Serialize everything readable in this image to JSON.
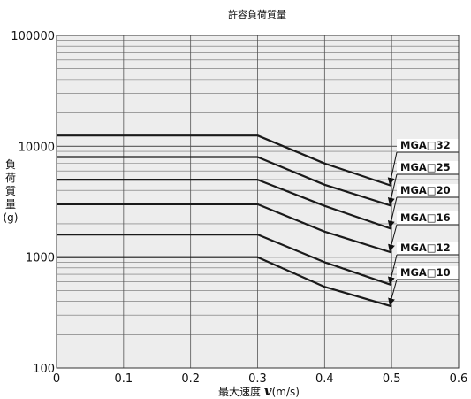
{
  "chart_data": {
    "type": "line",
    "title": "許容負荷質量",
    "xlabel_main": "最大速度 ",
    "xlabel_var": "v",
    "xlabel_unit": "(m/s)",
    "ylabel_chars": [
      "負",
      "荷",
      "質",
      "量",
      "(g)"
    ],
    "y_scale": "log",
    "xlim": [
      0,
      0.6
    ],
    "ylim": [
      100,
      100000
    ],
    "x_ticks": [
      0,
      0.1,
      0.2,
      0.3,
      0.4,
      0.5,
      0.6
    ],
    "x_tick_labels": [
      "0",
      "0.1",
      "0.2",
      "0.3",
      "0.4",
      "0.5",
      "0.6"
    ],
    "y_ticks": [
      100,
      1000,
      10000,
      100000
    ],
    "y_tick_labels": [
      "100",
      "1000",
      "10000",
      "100000"
    ],
    "grid": true,
    "background": "#ededed",
    "line_color": "#1a1a1a",
    "series": [
      {
        "name": "MGA□32",
        "x": [
          0,
          0.3,
          0.4,
          0.5
        ],
        "y": [
          12500,
          12500,
          7000,
          4400
        ]
      },
      {
        "name": "MGA□25",
        "x": [
          0,
          0.3,
          0.4,
          0.5
        ],
        "y": [
          8000,
          8000,
          4500,
          2900
        ]
      },
      {
        "name": "MGA□20",
        "x": [
          0,
          0.3,
          0.4,
          0.5
        ],
        "y": [
          5000,
          5000,
          2900,
          1800
        ]
      },
      {
        "name": "MGA□16",
        "x": [
          0,
          0.3,
          0.4,
          0.5
        ],
        "y": [
          3000,
          3000,
          1700,
          1100
        ]
      },
      {
        "name": "MGA□12",
        "x": [
          0,
          0.3,
          0.4,
          0.5
        ],
        "y": [
          1600,
          1600,
          900,
          560
        ]
      },
      {
        "name": "MGA□10",
        "x": [
          0,
          0.3,
          0.4,
          0.5
        ],
        "y": [
          1000,
          1000,
          540,
          360
        ]
      }
    ]
  }
}
